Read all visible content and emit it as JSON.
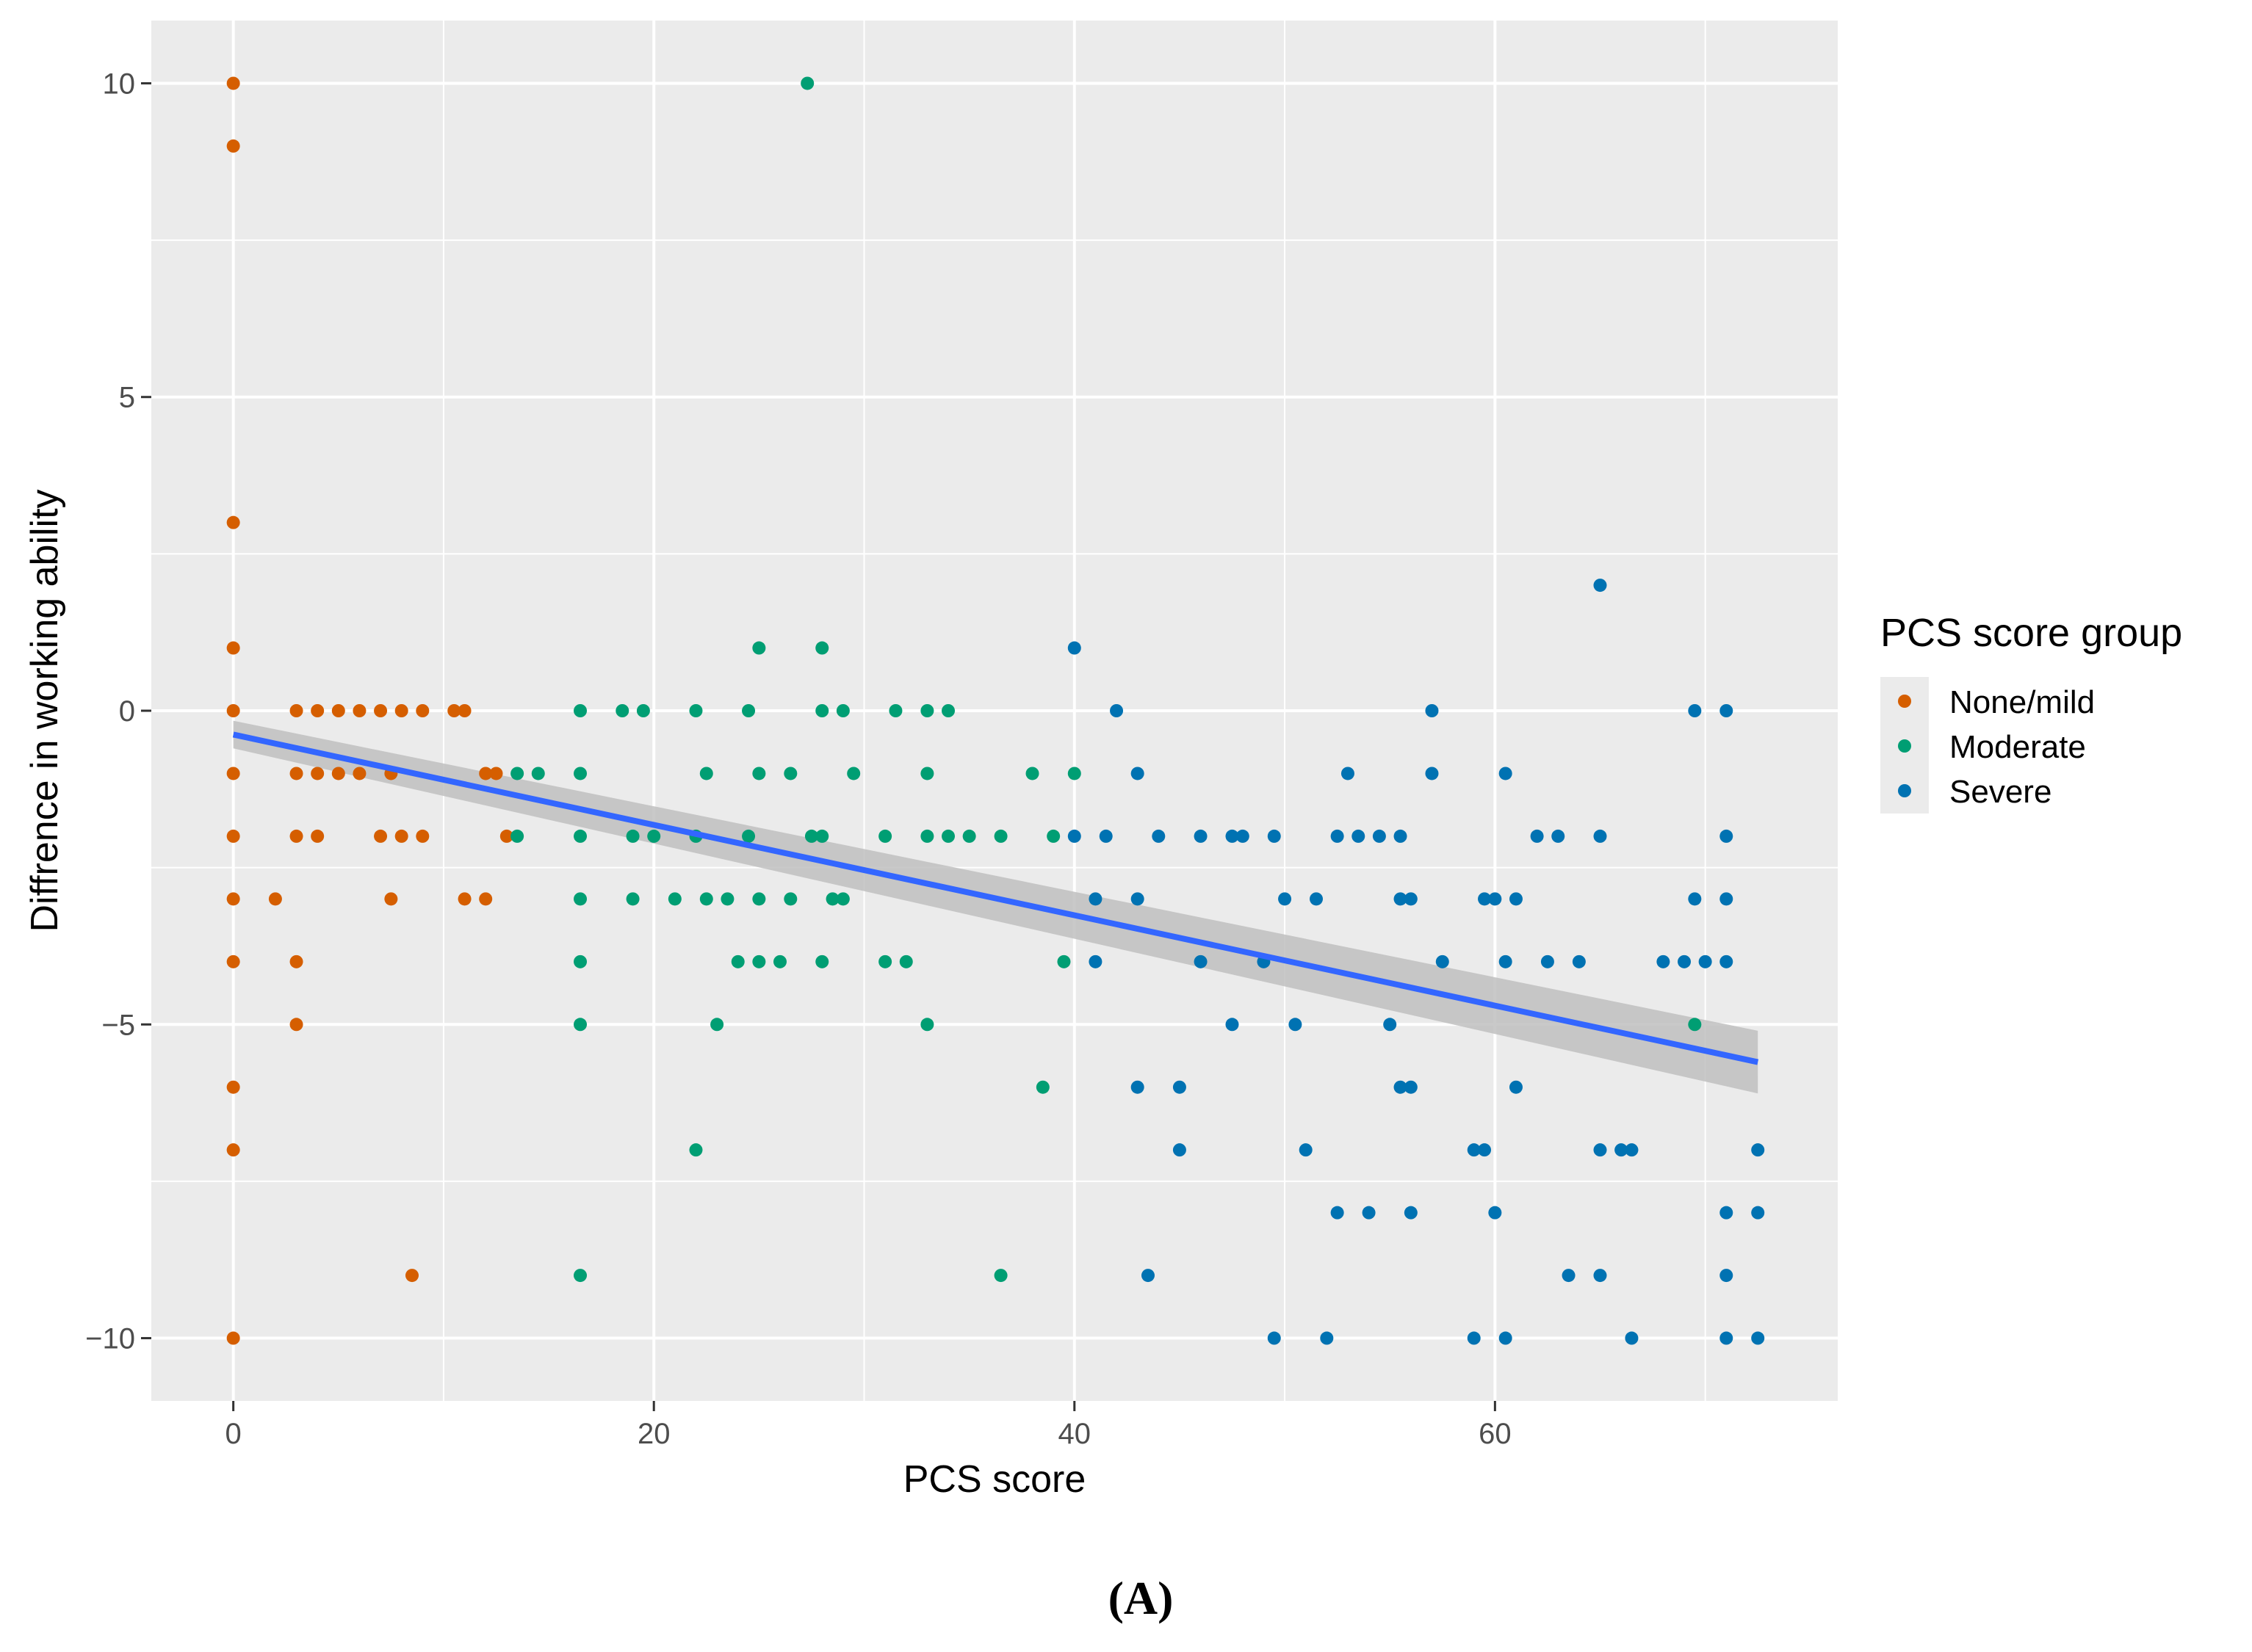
{
  "chart_data": {
    "type": "scatter",
    "title": "",
    "xlabel": "PCS score",
    "ylabel": "Diffrence in working ability",
    "xlim": [
      -3.9,
      76.3
    ],
    "ylim": [
      -11,
      11
    ],
    "xticks": [
      0,
      20,
      40,
      60
    ],
    "yticks": [
      -10,
      -5,
      0,
      5,
      10
    ],
    "grid": true,
    "panel_label": "(A)",
    "legend": {
      "title": "PCS score group",
      "position": "right",
      "entries": [
        "None/mild",
        "Moderate",
        "Severe"
      ]
    },
    "colors": {
      "None/mild": "#d55e00",
      "Moderate": "#009e73",
      "Severe": "#0072b2",
      "fit_line": "#3366ff",
      "confidence_band": "#bfbfbf",
      "panel_background": "#ebebeb",
      "grid": "#ffffff"
    },
    "fit_line": {
      "method": "linear",
      "x": [
        0,
        72.5
      ],
      "y": [
        -0.38,
        -5.6
      ],
      "ci_lower": [
        -0.6,
        -6.1
      ],
      "ci_upper": [
        -0.16,
        -5.1
      ]
    },
    "series": [
      {
        "name": "None/mild",
        "points": [
          [
            0,
            10
          ],
          [
            0,
            9
          ],
          [
            0,
            3
          ],
          [
            0,
            1
          ],
          [
            0,
            0
          ],
          [
            0,
            -1
          ],
          [
            0,
            -2
          ],
          [
            0,
            -3
          ],
          [
            0,
            -4
          ],
          [
            0,
            -6
          ],
          [
            0,
            -7
          ],
          [
            0,
            -10
          ],
          [
            2,
            -3
          ],
          [
            3,
            0
          ],
          [
            3,
            -1
          ],
          [
            3,
            -2
          ],
          [
            3,
            -4
          ],
          [
            3,
            -5
          ],
          [
            4,
            0
          ],
          [
            4,
            -1
          ],
          [
            4,
            -2
          ],
          [
            5,
            0
          ],
          [
            5,
            -1
          ],
          [
            6,
            0
          ],
          [
            6,
            -1
          ],
          [
            7,
            0
          ],
          [
            7,
            -2
          ],
          [
            7.5,
            -1
          ],
          [
            7.5,
            -3
          ],
          [
            8,
            0
          ],
          [
            8,
            -2
          ],
          [
            8.5,
            -9
          ],
          [
            9,
            0
          ],
          [
            9,
            -2
          ],
          [
            10.5,
            0
          ],
          [
            11,
            0
          ],
          [
            11,
            -3
          ],
          [
            12,
            -1
          ],
          [
            12,
            -3
          ],
          [
            12.5,
            -1
          ],
          [
            13,
            -2
          ]
        ]
      },
      {
        "name": "Moderate",
        "points": [
          [
            13.5,
            -1
          ],
          [
            13.5,
            -2
          ],
          [
            14.5,
            -1
          ],
          [
            16.5,
            0
          ],
          [
            16.5,
            -1
          ],
          [
            16.5,
            -2
          ],
          [
            16.5,
            -3
          ],
          [
            16.5,
            -4
          ],
          [
            16.5,
            -5
          ],
          [
            16.5,
            -9
          ],
          [
            18.5,
            0
          ],
          [
            19,
            -2
          ],
          [
            19,
            -3
          ],
          [
            19.5,
            0
          ],
          [
            20,
            -2
          ],
          [
            21,
            -3
          ],
          [
            22,
            -7
          ],
          [
            22,
            0
          ],
          [
            22,
            -2
          ],
          [
            22.5,
            -1
          ],
          [
            22.5,
            -3
          ],
          [
            23,
            -5
          ],
          [
            23.5,
            -3
          ],
          [
            24,
            -4
          ],
          [
            24.5,
            -2
          ],
          [
            24.5,
            0
          ],
          [
            25,
            -3
          ],
          [
            25,
            1
          ],
          [
            25,
            -1
          ],
          [
            25,
            -4
          ],
          [
            26,
            -4
          ],
          [
            26.5,
            -1
          ],
          [
            26.5,
            -3
          ],
          [
            27.3,
            10
          ],
          [
            27.5,
            -2
          ],
          [
            28,
            1
          ],
          [
            28,
            0
          ],
          [
            28,
            -2
          ],
          [
            28,
            -4
          ],
          [
            28.5,
            -3
          ],
          [
            29,
            0
          ],
          [
            29,
            -3
          ],
          [
            29.5,
            -1
          ],
          [
            31,
            -2
          ],
          [
            31,
            -4
          ],
          [
            31.5,
            0
          ],
          [
            32,
            -4
          ],
          [
            33,
            0
          ],
          [
            33,
            -1
          ],
          [
            33,
            -2
          ],
          [
            33,
            -5
          ],
          [
            34,
            -2
          ],
          [
            34,
            0
          ],
          [
            35,
            -2
          ],
          [
            36.5,
            -2
          ],
          [
            36.5,
            -9
          ],
          [
            38,
            -1
          ],
          [
            38.5,
            -6
          ],
          [
            39,
            -2
          ],
          [
            39.5,
            -4
          ],
          [
            40,
            -1
          ],
          [
            69.5,
            -5
          ]
        ]
      },
      {
        "name": "Severe",
        "points": [
          [
            40,
            1
          ],
          [
            40,
            -2
          ],
          [
            41,
            -3
          ],
          [
            41,
            -4
          ],
          [
            41.5,
            -2
          ],
          [
            42,
            0
          ],
          [
            43,
            -3
          ],
          [
            43,
            -1
          ],
          [
            43,
            -6
          ],
          [
            43.5,
            -9
          ],
          [
            44,
            -2
          ],
          [
            45,
            -6
          ],
          [
            45,
            -7
          ],
          [
            46,
            -2
          ],
          [
            46,
            -4
          ],
          [
            47.5,
            -2
          ],
          [
            47.5,
            -5
          ],
          [
            48,
            -2
          ],
          [
            49,
            -4
          ],
          [
            49.5,
            -2
          ],
          [
            49.5,
            -10
          ],
          [
            50,
            -3
          ],
          [
            50.5,
            -5
          ],
          [
            51,
            -7
          ],
          [
            51.5,
            -3
          ],
          [
            52,
            -10
          ],
          [
            52.5,
            -2
          ],
          [
            52.5,
            -8
          ],
          [
            53,
            -1
          ],
          [
            53.5,
            -2
          ],
          [
            54,
            -8
          ],
          [
            54.5,
            -2
          ],
          [
            55,
            -5
          ],
          [
            55.5,
            -2
          ],
          [
            55.5,
            -3
          ],
          [
            55.5,
            -6
          ],
          [
            56,
            -3
          ],
          [
            56,
            -6
          ],
          [
            56,
            -8
          ],
          [
            57,
            0
          ],
          [
            57,
            -1
          ],
          [
            57.5,
            -4
          ],
          [
            59,
            -7
          ],
          [
            59,
            -10
          ],
          [
            59.5,
            -3
          ],
          [
            59.5,
            -7
          ],
          [
            60,
            -3
          ],
          [
            60,
            -8
          ],
          [
            60.5,
            -1
          ],
          [
            60.5,
            -4
          ],
          [
            60.5,
            -10
          ],
          [
            61,
            -3
          ],
          [
            61,
            -6
          ],
          [
            62,
            -2
          ],
          [
            62.5,
            -4
          ],
          [
            63,
            -2
          ],
          [
            63.5,
            -9
          ],
          [
            64,
            -4
          ],
          [
            65,
            2
          ],
          [
            65,
            -2
          ],
          [
            65,
            -7
          ],
          [
            65,
            -9
          ],
          [
            66,
            -7
          ],
          [
            66.5,
            -10
          ],
          [
            66.5,
            -7
          ],
          [
            68,
            -4
          ],
          [
            69,
            -4
          ],
          [
            69.5,
            0
          ],
          [
            69.5,
            -3
          ],
          [
            70,
            -4
          ],
          [
            71,
            -4
          ],
          [
            71,
            0
          ],
          [
            71,
            -2
          ],
          [
            71,
            -3
          ],
          [
            71,
            -8
          ],
          [
            71,
            -9
          ],
          [
            71,
            -10
          ],
          [
            72.5,
            -7
          ],
          [
            72.5,
            -8
          ],
          [
            72.5,
            -10
          ]
        ]
      }
    ]
  }
}
